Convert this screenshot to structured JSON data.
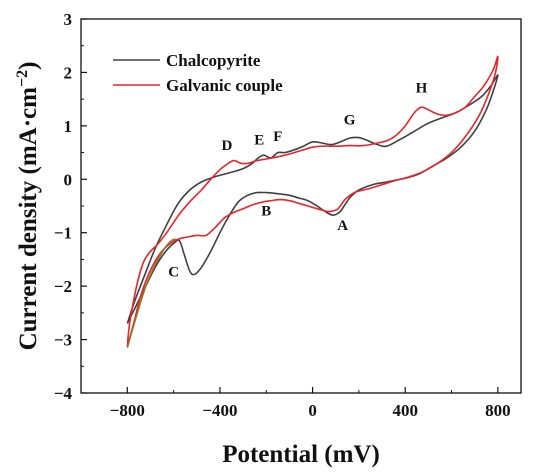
{
  "chart_data": {
    "type": "line",
    "xlabel": "Potential (mV)",
    "ylabel_main": "Current density (mA·cm",
    "ylabel_exp": "−2",
    "ylabel_close": ")",
    "xlim": [
      -1000,
      900
    ],
    "ylim": [
      -4,
      3
    ],
    "xticks": [
      -800,
      -400,
      0,
      400,
      800
    ],
    "xtick_labels": [
      "−800",
      "−400",
      "0",
      "400",
      "800"
    ],
    "yticks": [
      -4,
      -3,
      -2,
      -1,
      0,
      1,
      2,
      3
    ],
    "ytick_labels": [
      "−4",
      "−3",
      "−2",
      "−1",
      "0",
      "1",
      "2",
      "3"
    ],
    "grid": false,
    "legend_position": "top-left",
    "series": [
      {
        "name": "Chalcopyrite",
        "color": "#404040",
        "points": [
          [
            -800,
            -2.7
          ],
          [
            -760,
            -2.35
          ],
          [
            -720,
            -2.0
          ],
          [
            -680,
            -1.65
          ],
          [
            -640,
            -1.38
          ],
          [
            -600,
            -1.2
          ],
          [
            -575,
            -1.15
          ],
          [
            -555,
            -1.4
          ],
          [
            -530,
            -1.72
          ],
          [
            -510,
            -1.78
          ],
          [
            -480,
            -1.65
          ],
          [
            -440,
            -1.35
          ],
          [
            -400,
            -1.0
          ],
          [
            -360,
            -0.68
          ],
          [
            -320,
            -0.42
          ],
          [
            -280,
            -0.3
          ],
          [
            -240,
            -0.25
          ],
          [
            -200,
            -0.25
          ],
          [
            -150,
            -0.27
          ],
          [
            -100,
            -0.3
          ],
          [
            -60,
            -0.35
          ],
          [
            -20,
            -0.4
          ],
          [
            20,
            -0.5
          ],
          [
            60,
            -0.62
          ],
          [
            90,
            -0.67
          ],
          [
            120,
            -0.6
          ],
          [
            160,
            -0.35
          ],
          [
            200,
            -0.2
          ],
          [
            260,
            -0.1
          ],
          [
            320,
            -0.05
          ],
          [
            400,
            0.02
          ],
          [
            460,
            0.1
          ],
          [
            520,
            0.25
          ],
          [
            580,
            0.4
          ],
          [
            640,
            0.6
          ],
          [
            700,
            0.9
          ],
          [
            750,
            1.3
          ],
          [
            780,
            1.65
          ],
          [
            800,
            1.95
          ],
          [
            770,
            1.75
          ],
          [
            730,
            1.55
          ],
          [
            680,
            1.4
          ],
          [
            620,
            1.25
          ],
          [
            560,
            1.15
          ],
          [
            500,
            1.05
          ],
          [
            440,
            0.9
          ],
          [
            380,
            0.75
          ],
          [
            320,
            0.62
          ],
          [
            280,
            0.65
          ],
          [
            240,
            0.72
          ],
          [
            200,
            0.78
          ],
          [
            160,
            0.77
          ],
          [
            120,
            0.7
          ],
          [
            80,
            0.65
          ],
          [
            40,
            0.68
          ],
          [
            0,
            0.7
          ],
          [
            -40,
            0.62
          ],
          [
            -80,
            0.55
          ],
          [
            -120,
            0.5
          ],
          [
            -150,
            0.5
          ],
          [
            -180,
            0.4
          ],
          [
            -210,
            0.45
          ],
          [
            -235,
            0.4
          ],
          [
            -260,
            0.3
          ],
          [
            -300,
            0.2
          ],
          [
            -360,
            0.12
          ],
          [
            -420,
            0.05
          ],
          [
            -480,
            -0.05
          ],
          [
            -530,
            -0.2
          ],
          [
            -580,
            -0.45
          ],
          [
            -630,
            -0.85
          ],
          [
            -680,
            -1.3
          ],
          [
            -730,
            -1.85
          ],
          [
            -770,
            -2.3
          ],
          [
            -800,
            -2.7
          ]
        ]
      },
      {
        "name": "Galvanic couple",
        "color": "#e8252a",
        "points": [
          [
            -800,
            -3.15
          ],
          [
            -770,
            -2.65
          ],
          [
            -740,
            -2.15
          ],
          [
            -700,
            -1.7
          ],
          [
            -660,
            -1.4
          ],
          [
            -620,
            -1.22
          ],
          [
            -580,
            -1.12
          ],
          [
            -540,
            -1.08
          ],
          [
            -500,
            -1.05
          ],
          [
            -460,
            -1.05
          ],
          [
            -420,
            -0.9
          ],
          [
            -380,
            -0.72
          ],
          [
            -340,
            -0.62
          ],
          [
            -300,
            -0.55
          ],
          [
            -260,
            -0.48
          ],
          [
            -220,
            -0.43
          ],
          [
            -180,
            -0.4
          ],
          [
            -140,
            -0.38
          ],
          [
            -100,
            -0.4
          ],
          [
            -60,
            -0.45
          ],
          [
            -20,
            -0.5
          ],
          [
            20,
            -0.55
          ],
          [
            60,
            -0.6
          ],
          [
            80,
            -0.6
          ],
          [
            110,
            -0.55
          ],
          [
            140,
            -0.38
          ],
          [
            180,
            -0.25
          ],
          [
            240,
            -0.18
          ],
          [
            300,
            -0.1
          ],
          [
            360,
            -0.02
          ],
          [
            420,
            0.05
          ],
          [
            480,
            0.15
          ],
          [
            540,
            0.3
          ],
          [
            600,
            0.5
          ],
          [
            660,
            0.8
          ],
          [
            720,
            1.2
          ],
          [
            760,
            1.6
          ],
          [
            790,
            2.0
          ],
          [
            800,
            2.3
          ],
          [
            780,
            2.05
          ],
          [
            740,
            1.75
          ],
          [
            700,
            1.55
          ],
          [
            660,
            1.35
          ],
          [
            620,
            1.25
          ],
          [
            580,
            1.2
          ],
          [
            540,
            1.22
          ],
          [
            500,
            1.3
          ],
          [
            470,
            1.35
          ],
          [
            440,
            1.25
          ],
          [
            400,
            1.0
          ],
          [
            360,
            0.82
          ],
          [
            320,
            0.72
          ],
          [
            280,
            0.68
          ],
          [
            220,
            0.63
          ],
          [
            160,
            0.63
          ],
          [
            100,
            0.62
          ],
          [
            40,
            0.62
          ],
          [
            0,
            0.6
          ],
          [
            -40,
            0.55
          ],
          [
            -80,
            0.5
          ],
          [
            -120,
            0.45
          ],
          [
            -150,
            0.42
          ],
          [
            -200,
            0.38
          ],
          [
            -240,
            0.35
          ],
          [
            -280,
            0.3
          ],
          [
            -310,
            0.3
          ],
          [
            -340,
            0.35
          ],
          [
            -370,
            0.28
          ],
          [
            -400,
            0.18
          ],
          [
            -440,
            0.0
          ],
          [
            -480,
            -0.2
          ],
          [
            -530,
            -0.42
          ],
          [
            -580,
            -0.68
          ],
          [
            -630,
            -1.0
          ],
          [
            -670,
            -1.22
          ],
          [
            -700,
            -1.35
          ],
          [
            -730,
            -1.55
          ],
          [
            -760,
            -2.0
          ],
          [
            -790,
            -2.7
          ],
          [
            -800,
            -3.15
          ]
        ]
      }
    ],
    "lower_branch": {
      "color": "#8b7a2a",
      "points": [
        [
          -800,
          -3.15
        ],
        [
          -760,
          -2.55
        ],
        [
          -720,
          -2.0
        ],
        [
          -680,
          -1.6
        ],
        [
          -640,
          -1.3
        ],
        [
          -610,
          -1.15
        ],
        [
          -590,
          -1.12
        ]
      ]
    },
    "annotations": [
      {
        "text": "A",
        "x": 130,
        "y": -0.95
      },
      {
        "text": "B",
        "x": -200,
        "y": -0.68
      },
      {
        "text": "C",
        "x": -600,
        "y": -1.82
      },
      {
        "text": "D",
        "x": -370,
        "y": 0.55
      },
      {
        "text": "E",
        "x": -230,
        "y": 0.65
      },
      {
        "text": "F",
        "x": -150,
        "y": 0.72
      },
      {
        "text": "G",
        "x": 160,
        "y": 1.03
      },
      {
        "text": "H",
        "x": 470,
        "y": 1.62
      }
    ]
  }
}
